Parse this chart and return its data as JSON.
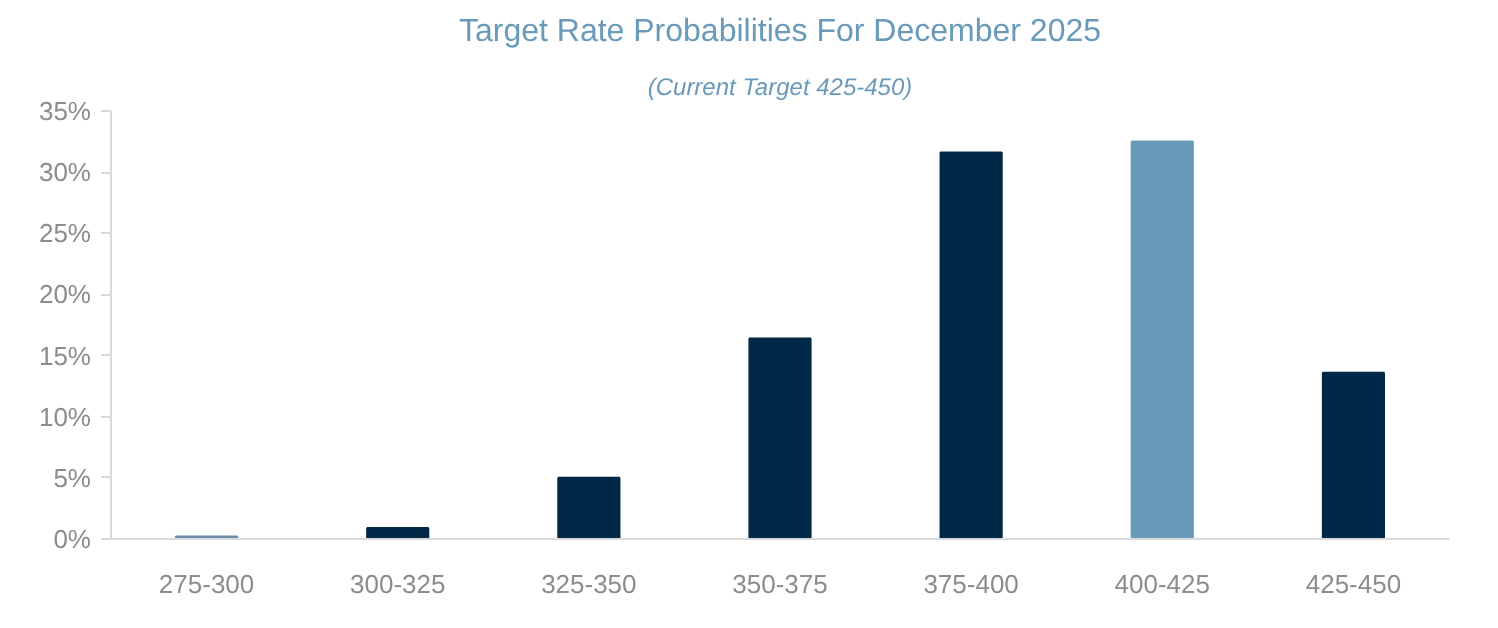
{
  "chart_data": {
    "type": "bar",
    "title": "Target Rate Probabilities For December 2025",
    "subtitle": "(Current Target 425-450)",
    "categories": [
      "275-300",
      "300-325",
      "325-350",
      "350-375",
      "375-400",
      "400-425",
      "425-450"
    ],
    "values": [
      0.2,
      0.9,
      5.0,
      16.4,
      31.6,
      32.5,
      13.6
    ],
    "colors": [
      "#6a8cab",
      "#002847",
      "#002847",
      "#002847",
      "#002847",
      "#6a9aba",
      "#002847"
    ],
    "ylim": [
      0,
      35
    ],
    "yticks": [
      {
        "value": 0,
        "label": "0%"
      },
      {
        "value": 5,
        "label": "5%"
      },
      {
        "value": 10,
        "label": "10%"
      },
      {
        "value": 15,
        "label": "15%"
      },
      {
        "value": 20,
        "label": "20%"
      },
      {
        "value": 25,
        "label": "25%"
      },
      {
        "value": 30,
        "label": "30%"
      },
      {
        "value": 35,
        "label": "35%"
      }
    ],
    "grid": false
  }
}
